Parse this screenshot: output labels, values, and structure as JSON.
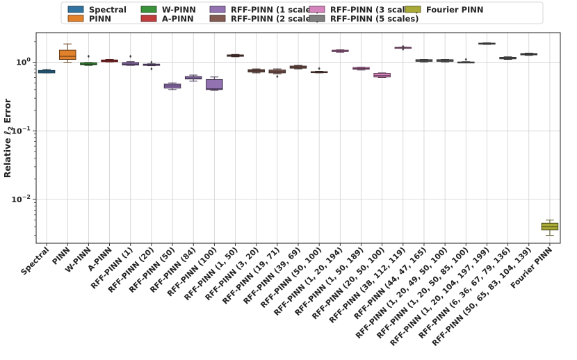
{
  "chart_data": {
    "type": "box",
    "title": "",
    "xlabel": "",
    "ylabel": "Relative ℓ2 Error",
    "y_scale": "log",
    "ylim": [
      0.0023,
      2.7
    ],
    "y_ticks": [
      {
        "value": 0.01,
        "base": "10",
        "exp": "−2"
      },
      {
        "value": 0.1,
        "base": "10",
        "exp": "−1"
      },
      {
        "value": 1,
        "base": "10",
        "exp": "0"
      }
    ],
    "grid": true,
    "legend_position": "top-center",
    "legend": [
      {
        "name": "Spectral",
        "color": "#3274a1",
        "text_color": "#222222"
      },
      {
        "name": "PINN",
        "color": "#e1812c",
        "text_color": "#222222"
      },
      {
        "name": "W-PINN",
        "color": "#3a923a",
        "text_color": "#222222"
      },
      {
        "name": "A-PINN",
        "color": "#c03d3e",
        "text_color": "#222222"
      },
      {
        "name": "RFF-PINN (1 scales)",
        "color": "#9372b2",
        "text_color": "#222222"
      },
      {
        "name": "RFF-PINN (2 scales)",
        "color": "#845b53",
        "text_color": "#222222"
      },
      {
        "name": "RFF-PINN (3 scales)",
        "color": "#d684bd",
        "text_color": "#222222"
      },
      {
        "name": "RFF-PINN (5 scales)",
        "color": "#7f7f7f",
        "text_color": "#222222"
      },
      {
        "name": "Fourier PINN",
        "color": "#a9aa35",
        "text_color": "#ff0000"
      }
    ],
    "boxes": [
      {
        "label": "Spectral",
        "group": 0,
        "q1": 0.7,
        "median": 0.73,
        "q3": 0.76,
        "whislo": 0.7,
        "whishi": 0.79,
        "fliers": []
      },
      {
        "label": "PINN",
        "group": 1,
        "q1": 1.1,
        "median": 1.22,
        "q3": 1.5,
        "whislo": 1.0,
        "whishi": 1.85,
        "fliers": []
      },
      {
        "label": "W-PINN",
        "group": 2,
        "q1": 0.92,
        "median": 0.94,
        "q3": 0.98,
        "whislo": 0.9,
        "whishi": 0.99,
        "fliers": [
          1.22
        ]
      },
      {
        "label": "A-PINN",
        "group": 3,
        "q1": 1.02,
        "median": 1.05,
        "q3": 1.08,
        "whislo": 1.01,
        "whishi": 1.1,
        "fliers": []
      },
      {
        "label": "RFF-PINN (1)",
        "group": 4,
        "q1": 0.91,
        "median": 0.94,
        "q3": 0.99,
        "whislo": 0.9,
        "whishi": 1.02,
        "fliers": [
          1.22
        ]
      },
      {
        "label": "RFF-PINN (20)",
        "group": 4,
        "q1": 0.9,
        "median": 0.92,
        "q3": 0.94,
        "whislo": 0.89,
        "whishi": 0.95,
        "fliers": [
          0.8,
          1.0
        ]
      },
      {
        "label": "RFF-PINN (50)",
        "group": 4,
        "q1": 0.42,
        "median": 0.45,
        "q3": 0.48,
        "whislo": 0.4,
        "whishi": 0.5,
        "fliers": []
      },
      {
        "label": "RFF-PINN (84)",
        "group": 4,
        "q1": 0.57,
        "median": 0.59,
        "q3": 0.62,
        "whislo": 0.53,
        "whishi": 0.65,
        "fliers": []
      },
      {
        "label": "RFF-PINN (100)",
        "group": 4,
        "q1": 0.4,
        "median": 0.41,
        "q3": 0.56,
        "whislo": 0.39,
        "whishi": 0.61,
        "fliers": []
      },
      {
        "label": "RFF-PINN (1, 50)",
        "group": 5,
        "q1": 1.22,
        "median": 1.25,
        "q3": 1.28,
        "whislo": 1.2,
        "whishi": 1.3,
        "fliers": []
      },
      {
        "label": "RFF-PINN (3, 20)",
        "group": 5,
        "q1": 0.72,
        "median": 0.75,
        "q3": 0.78,
        "whislo": 0.7,
        "whishi": 0.8,
        "fliers": []
      },
      {
        "label": "RFF-PINN (19, 71)",
        "group": 5,
        "q1": 0.7,
        "median": 0.73,
        "q3": 0.77,
        "whislo": 0.68,
        "whishi": 0.8,
        "fliers": [
          0.62
        ]
      },
      {
        "label": "RFF-PINN (39, 69)",
        "group": 5,
        "q1": 0.82,
        "median": 0.85,
        "q3": 0.88,
        "whislo": 0.8,
        "whishi": 0.9,
        "fliers": []
      },
      {
        "label": "RFF-PINN (50, 100)",
        "group": 5,
        "q1": 0.71,
        "median": 0.72,
        "q3": 0.73,
        "whislo": 0.7,
        "whishi": 0.74,
        "fliers": [
          0.81
        ]
      },
      {
        "label": "RFF-PINN (1, 20, 194)",
        "group": 6,
        "q1": 1.43,
        "median": 1.46,
        "q3": 1.5,
        "whislo": 1.4,
        "whishi": 1.52,
        "fliers": []
      },
      {
        "label": "RFF-PINN (1, 50, 189)",
        "group": 6,
        "q1": 0.79,
        "median": 0.81,
        "q3": 0.84,
        "whislo": 0.77,
        "whishi": 0.85,
        "fliers": []
      },
      {
        "label": "RFF-PINN (20, 50, 100)",
        "group": 6,
        "q1": 0.61,
        "median": 0.64,
        "q3": 0.69,
        "whislo": 0.6,
        "whishi": 0.7,
        "fliers": []
      },
      {
        "label": "RFF-PINN (38, 112, 119)",
        "group": 6,
        "q1": 1.63,
        "median": 1.64,
        "q3": 1.65,
        "whislo": 1.62,
        "whishi": 1.66,
        "fliers": [
          1.55,
          1.7
        ]
      },
      {
        "label": "RFF-PINN (44, 47, 165)",
        "group": 7,
        "q1": 1.03,
        "median": 1.06,
        "q3": 1.09,
        "whislo": 1.01,
        "whishi": 1.1,
        "fliers": []
      },
      {
        "label": "RFF-PINN (1, 20, 49, 50, 100)",
        "group": 7,
        "q1": 1.03,
        "median": 1.06,
        "q3": 1.09,
        "whislo": 1.01,
        "whishi": 1.1,
        "fliers": []
      },
      {
        "label": "RFF-PINN (1, 20, 50, 85, 100)",
        "group": 7,
        "q1": 1.0,
        "median": 1.0,
        "q3": 1.01,
        "whislo": 0.99,
        "whishi": 1.02,
        "fliers": [
          1.1
        ]
      },
      {
        "label": "RFF-PINN (1, 20, 104, 197, 199)",
        "group": 7,
        "q1": 1.84,
        "median": 1.87,
        "q3": 1.9,
        "whislo": 1.82,
        "whishi": 1.92,
        "fliers": []
      },
      {
        "label": "RFF-PINN (6, 36, 67, 79, 136)",
        "group": 7,
        "q1": 1.12,
        "median": 1.15,
        "q3": 1.18,
        "whislo": 1.1,
        "whishi": 1.2,
        "fliers": []
      },
      {
        "label": "RFF-PINN (50, 65, 83, 104, 139)",
        "group": 7,
        "q1": 1.28,
        "median": 1.31,
        "q3": 1.34,
        "whislo": 1.26,
        "whishi": 1.36,
        "fliers": []
      },
      {
        "label": "Fourier PINN",
        "group": 8,
        "q1": 0.0036,
        "median": 0.004,
        "q3": 0.0045,
        "whislo": 0.003,
        "whishi": 0.005,
        "fliers": []
      }
    ],
    "highlight_label": "Fourier PINN",
    "highlight_color": "#ff0000"
  }
}
